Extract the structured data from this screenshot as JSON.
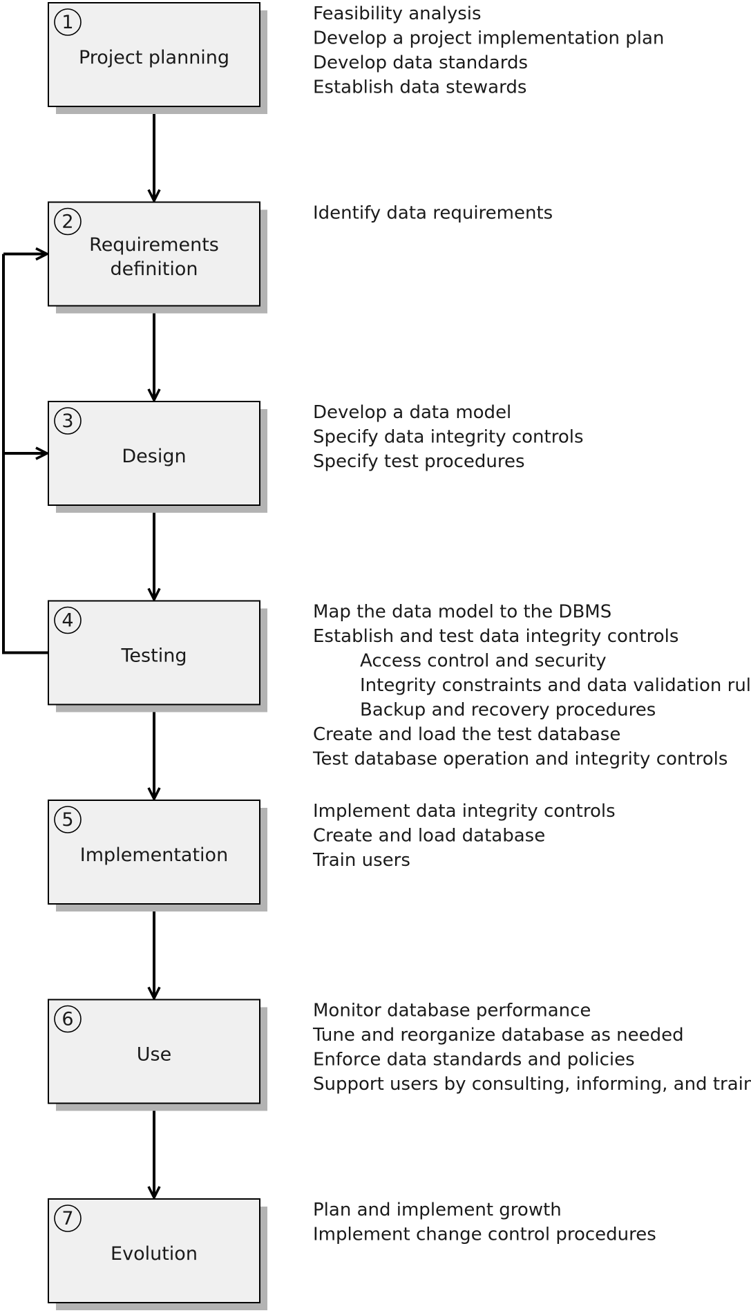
{
  "stages": [
    {
      "number": "1",
      "title_lines": [
        "Project planning"
      ],
      "activities": [
        {
          "text": "Feasibility analysis",
          "indent": false
        },
        {
          "text": "Develop a project implementation plan",
          "indent": false
        },
        {
          "text": "Develop data standards",
          "indent": false
        },
        {
          "text": "Establish data stewards",
          "indent": false
        }
      ]
    },
    {
      "number": "2",
      "title_lines": [
        "Requirements",
        "definition"
      ],
      "activities": [
        {
          "text": "Identify data requirements",
          "indent": false
        }
      ]
    },
    {
      "number": "3",
      "title_lines": [
        "Design"
      ],
      "activities": [
        {
          "text": "Develop a data model",
          "indent": false
        },
        {
          "text": "Specify data integrity controls",
          "indent": false
        },
        {
          "text": "Specify test procedures",
          "indent": false
        }
      ]
    },
    {
      "number": "4",
      "title_lines": [
        "Testing"
      ],
      "activities": [
        {
          "text": "Map the data model to the DBMS",
          "indent": false
        },
        {
          "text": "Establish and test data integrity controls",
          "indent": false
        },
        {
          "text": "Access control and security",
          "indent": true
        },
        {
          "text": "Integrity constraints and data validation rules",
          "indent": true
        },
        {
          "text": "Backup and recovery procedures",
          "indent": true
        },
        {
          "text": "Create and load the test database",
          "indent": false
        },
        {
          "text": "Test database operation and integrity controls",
          "indent": false
        }
      ]
    },
    {
      "number": "5",
      "title_lines": [
        "Implementation"
      ],
      "activities": [
        {
          "text": "Implement data integrity controls",
          "indent": false
        },
        {
          "text": "Create and load database",
          "indent": false
        },
        {
          "text": "Train users",
          "indent": false
        }
      ]
    },
    {
      "number": "6",
      "title_lines": [
        "Use"
      ],
      "activities": [
        {
          "text": "Monitor database performance",
          "indent": false
        },
        {
          "text": "Tune and reorganize database as needed",
          "indent": false
        },
        {
          "text": "Enforce data standards and policies",
          "indent": false
        },
        {
          "text": "Support users by consulting, informing, and training",
          "indent": false
        }
      ]
    },
    {
      "number": "7",
      "title_lines": [
        "Evolution"
      ],
      "activities": [
        {
          "text": "Plan and implement growth",
          "indent": false
        },
        {
          "text": "Implement change control procedures",
          "indent": false
        }
      ]
    }
  ],
  "feedback_loop": {
    "from_stage": "4",
    "to_stages": [
      "2",
      "3"
    ]
  },
  "colors": {
    "box_fill": "#f0f0f0",
    "box_shadow": "#b3b3b3",
    "stroke": "#000000",
    "text": "#1a1a1a",
    "background": "#ffffff"
  }
}
